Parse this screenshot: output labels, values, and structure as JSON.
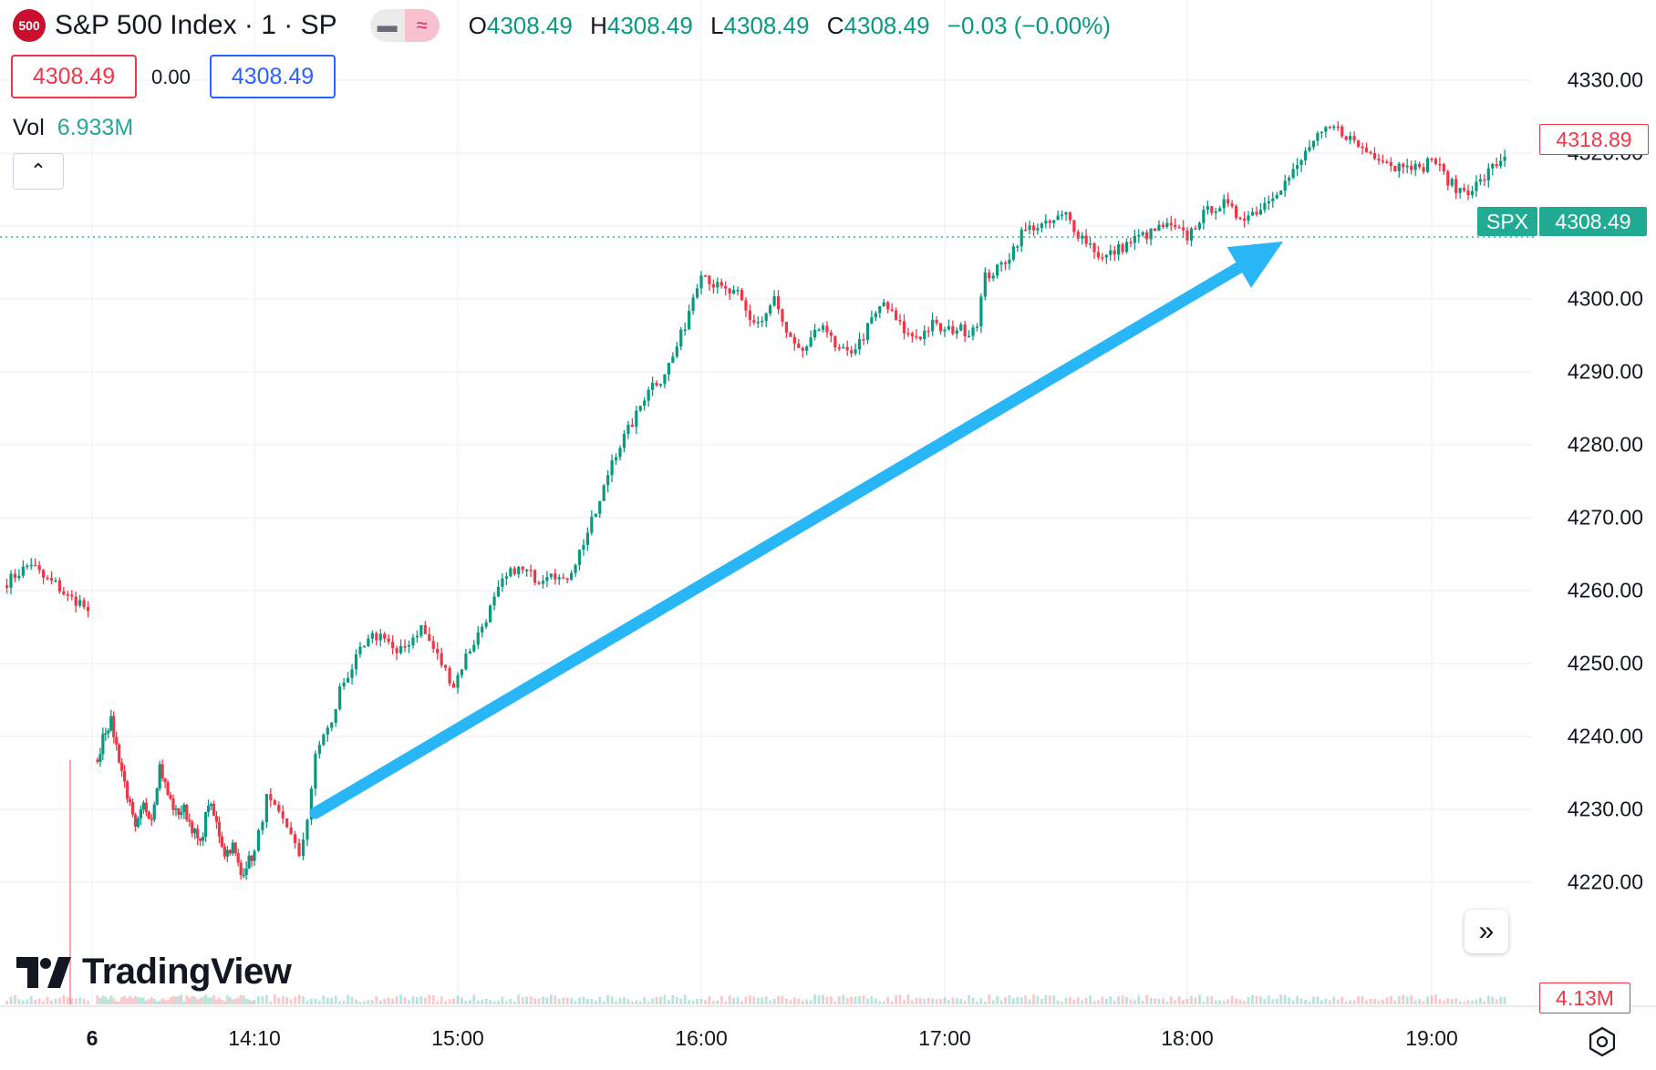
{
  "header": {
    "symbol_badge": "500",
    "title": "S&P 500 Index · 1 · SP",
    "ohlc": {
      "o_label": "O",
      "o_value": "4308.49",
      "h_label": "H",
      "h_value": "4308.49",
      "l_label": "L",
      "l_value": "4308.49",
      "c_label": "C",
      "c_value": "4308.49",
      "change": "−0.03 (−0.00%)"
    }
  },
  "quote": {
    "bid": "4308.49",
    "spread": "0.00",
    "ask": "4308.49"
  },
  "volume": {
    "label": "Vol",
    "value": "6.933M"
  },
  "collapse_icon": "chevron-up-icon",
  "logo_text": "TradingView",
  "colors": {
    "up": "#089981",
    "down": "#f23645",
    "arrow": "#29b6f6",
    "price_tag": "#22ab94"
  },
  "chart_data": {
    "type": "candlestick",
    "ylim": [
      4214,
      4334
    ],
    "y_ticks": [
      "4330.00",
      "4320.00",
      "4310.00",
      "4300.00",
      "4290.00",
      "4280.00",
      "4270.00",
      "4260.00",
      "4250.00",
      "4240.00",
      "4230.00",
      "4220.00"
    ],
    "x_ticks": [
      "6",
      "14:10",
      "15:00",
      "16:00",
      "17:00",
      "18:00",
      "19:00"
    ],
    "x_tick_minutes": [
      -60,
      0,
      50,
      110,
      170,
      230,
      290
    ],
    "x_range_minutes": [
      -81,
      317
    ],
    "gap_after_minutes": -60,
    "series": [
      {
        "segment": "previous-day",
        "points": [
          [
            -81,
            4261.2
          ],
          [
            -78,
            4262.5
          ],
          [
            -75,
            4263.8
          ],
          [
            -72,
            4261.7
          ],
          [
            -69,
            4260.9
          ],
          [
            -66,
            4259.1
          ],
          [
            -63,
            4258.4
          ],
          [
            -61,
            4257.2
          ]
        ]
      },
      {
        "segment": "session",
        "points": [
          [
            -58,
            4236.0
          ],
          [
            -56,
            4240.5
          ],
          [
            -53,
            4242.0
          ],
          [
            -50,
            4237.0
          ],
          [
            -47,
            4232.0
          ],
          [
            -44,
            4227.0
          ],
          [
            -41,
            4230.5
          ],
          [
            -38,
            4229.0
          ],
          [
            -35,
            4236.0
          ],
          [
            -32,
            4232.0
          ],
          [
            -29,
            4229.5
          ],
          [
            -26,
            4230.0
          ],
          [
            -23,
            4227.5
          ],
          [
            -20,
            4225.0
          ],
          [
            -17,
            4231.0
          ],
          [
            -14,
            4228.0
          ],
          [
            -11,
            4224.0
          ],
          [
            -8,
            4225.0
          ],
          [
            -5,
            4221.0
          ],
          [
            -3,
            4222.5
          ],
          [
            0,
            4224.0
          ],
          [
            3,
            4231.5
          ],
          [
            6,
            4229.0
          ],
          [
            9,
            4227.0
          ],
          [
            11,
            4223.0
          ],
          [
            13,
            4229.0
          ],
          [
            15,
            4237.0
          ],
          [
            17,
            4240.5
          ],
          [
            19,
            4241.5
          ],
          [
            21,
            4246.5
          ],
          [
            23,
            4248.5
          ],
          [
            26,
            4251.5
          ],
          [
            29,
            4253.5
          ],
          [
            32,
            4254.0
          ],
          [
            35,
            4251.0
          ],
          [
            38,
            4253.0
          ],
          [
            41,
            4255.0
          ],
          [
            44,
            4252.0
          ],
          [
            47,
            4249.0
          ],
          [
            49,
            4247.0
          ],
          [
            52,
            4251.0
          ],
          [
            55,
            4254.0
          ],
          [
            58,
            4257.5
          ],
          [
            61,
            4261.0
          ],
          [
            64,
            4263.0
          ],
          [
            67,
            4262.5
          ],
          [
            70,
            4261.5
          ],
          [
            73,
            4263.0
          ],
          [
            76,
            4261.0
          ],
          [
            79,
            4264.0
          ],
          [
            82,
            4268.0
          ],
          [
            85,
            4272.0
          ],
          [
            88,
            4278.0
          ],
          [
            91,
            4281.0
          ],
          [
            94,
            4284.0
          ],
          [
            97,
            4288.0
          ],
          [
            100,
            4289.0
          ],
          [
            103,
            4292.0
          ],
          [
            106,
            4296.5
          ],
          [
            108,
            4300.5
          ],
          [
            110,
            4304.0
          ],
          [
            113,
            4302.0
          ],
          [
            116,
            4301.0
          ],
          [
            119,
            4300.5
          ],
          [
            122,
            4297.0
          ],
          [
            125,
            4297.0
          ],
          [
            128,
            4300.0
          ],
          [
            131,
            4295.0
          ],
          [
            134,
            4292.5
          ],
          [
            137,
            4294.0
          ],
          [
            140,
            4297.0
          ],
          [
            143,
            4293.0
          ],
          [
            146,
            4292.5
          ],
          [
            149,
            4294.0
          ],
          [
            152,
            4297.0
          ],
          [
            155,
            4299.5
          ],
          [
            158,
            4297.0
          ],
          [
            161,
            4295.0
          ],
          [
            164,
            4295.0
          ],
          [
            167,
            4296.5
          ],
          [
            170,
            4295.5
          ],
          [
            173,
            4296.0
          ],
          [
            176,
            4295.5
          ],
          [
            178,
            4297.0
          ],
          [
            180,
            4303.0
          ],
          [
            183,
            4304.0
          ],
          [
            186,
            4306.0
          ],
          [
            189,
            4309.0
          ],
          [
            192,
            4310.0
          ],
          [
            195,
            4310.0
          ],
          [
            198,
            4311.0
          ],
          [
            200,
            4311.5
          ],
          [
            203,
            4309.0
          ],
          [
            206,
            4307.5
          ],
          [
            209,
            4305.5
          ],
          [
            212,
            4306.5
          ],
          [
            215,
            4307.5
          ],
          [
            218,
            4308.5
          ],
          [
            221,
            4309.0
          ],
          [
            224,
            4310.0
          ],
          [
            227,
            4309.5
          ],
          [
            230,
            4308.5
          ],
          [
            233,
            4311.0
          ],
          [
            236,
            4312.5
          ],
          [
            239,
            4313.0
          ],
          [
            242,
            4311.5
          ],
          [
            245,
            4311.5
          ],
          [
            248,
            4312.5
          ],
          [
            251,
            4314.5
          ],
          [
            254,
            4316.0
          ],
          [
            257,
            4318.0
          ],
          [
            260,
            4321.0
          ],
          [
            263,
            4322.5
          ],
          [
            266,
            4323.5
          ],
          [
            269,
            4322.5
          ],
          [
            272,
            4321.0
          ],
          [
            275,
            4320.0
          ],
          [
            278,
            4319.5
          ],
          [
            281,
            4318.0
          ],
          [
            284,
            4319.0
          ],
          [
            287,
            4317.5
          ],
          [
            290,
            4319.5
          ],
          [
            293,
            4317.0
          ],
          [
            296,
            4315.0
          ],
          [
            299,
            4315.0
          ],
          [
            302,
            4316.0
          ],
          [
            305,
            4318.0
          ],
          [
            308,
            4319.5
          ]
        ]
      }
    ],
    "last_price": 4308.49,
    "last_price_label": "4308.49",
    "last_price_symbol": "SPX",
    "current_price": 4318.89,
    "current_price_label": "4318.89",
    "volume_label": "4.13M",
    "annotation": {
      "type": "trend-arrow",
      "from": [
        15,
        4229.5
      ],
      "to": [
        245,
        4307.5
      ]
    }
  }
}
